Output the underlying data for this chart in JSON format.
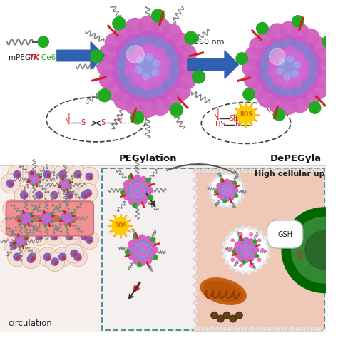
{
  "bg_color": "#ffffff",
  "pegylation_label": "PEGylation",
  "depegylation_label": "DePEGyla",
  "label_660nm": "660 nm",
  "label_mpeg": "mPEG-",
  "label_tk": "TK",
  "label_ce6": "-Ce6",
  "label_ros": "ROS",
  "label_gsh": "GSH",
  "label_high_cellular": "High cellular up",
  "label_circulation": "circulation",
  "np_magenta": "#d060c0",
  "np_blue": "#8080d0",
  "np_inner": "#a070c0",
  "np_pink_texture": "#e080d0",
  "green_dot_color": "#22aa22",
  "red_linker_color": "#cc2222",
  "peg_chain_color": "#808080",
  "arrow_blue_color": "#3060b0",
  "ros_sun_color": "#ffcc00",
  "ros_text_color": "#cc6600",
  "cell_bg_color": "#f0c8b8",
  "tumor_pink": "#f5c0b0",
  "cell_outer_color": "#f8ddd0",
  "cell_border_color": "#e0b0a0",
  "vessel_color": "#f09090",
  "vessel_edge": "#d07080",
  "nucleus_purple": "#8060c0",
  "nucleolus_red": "#cc3333",
  "mito_orange": "#c86010",
  "mito_dark": "#8b3a00",
  "dark_brown": "#4a2800",
  "nucleus_green": "#006600",
  "nucleus_green2": "#338833",
  "lyso_bg": "#ffffff",
  "pink_drug": "#ff69b4",
  "dashed_ellipse_color": "#444444",
  "dashed_box_color": "#5090a0",
  "divider_color": "#cccccc",
  "tk_red": "#cc2222",
  "bond_black": "#333333",
  "green_linker": "#008800",
  "laser_red": "#cc2222",
  "beige_cell": "#f5e0d5"
}
